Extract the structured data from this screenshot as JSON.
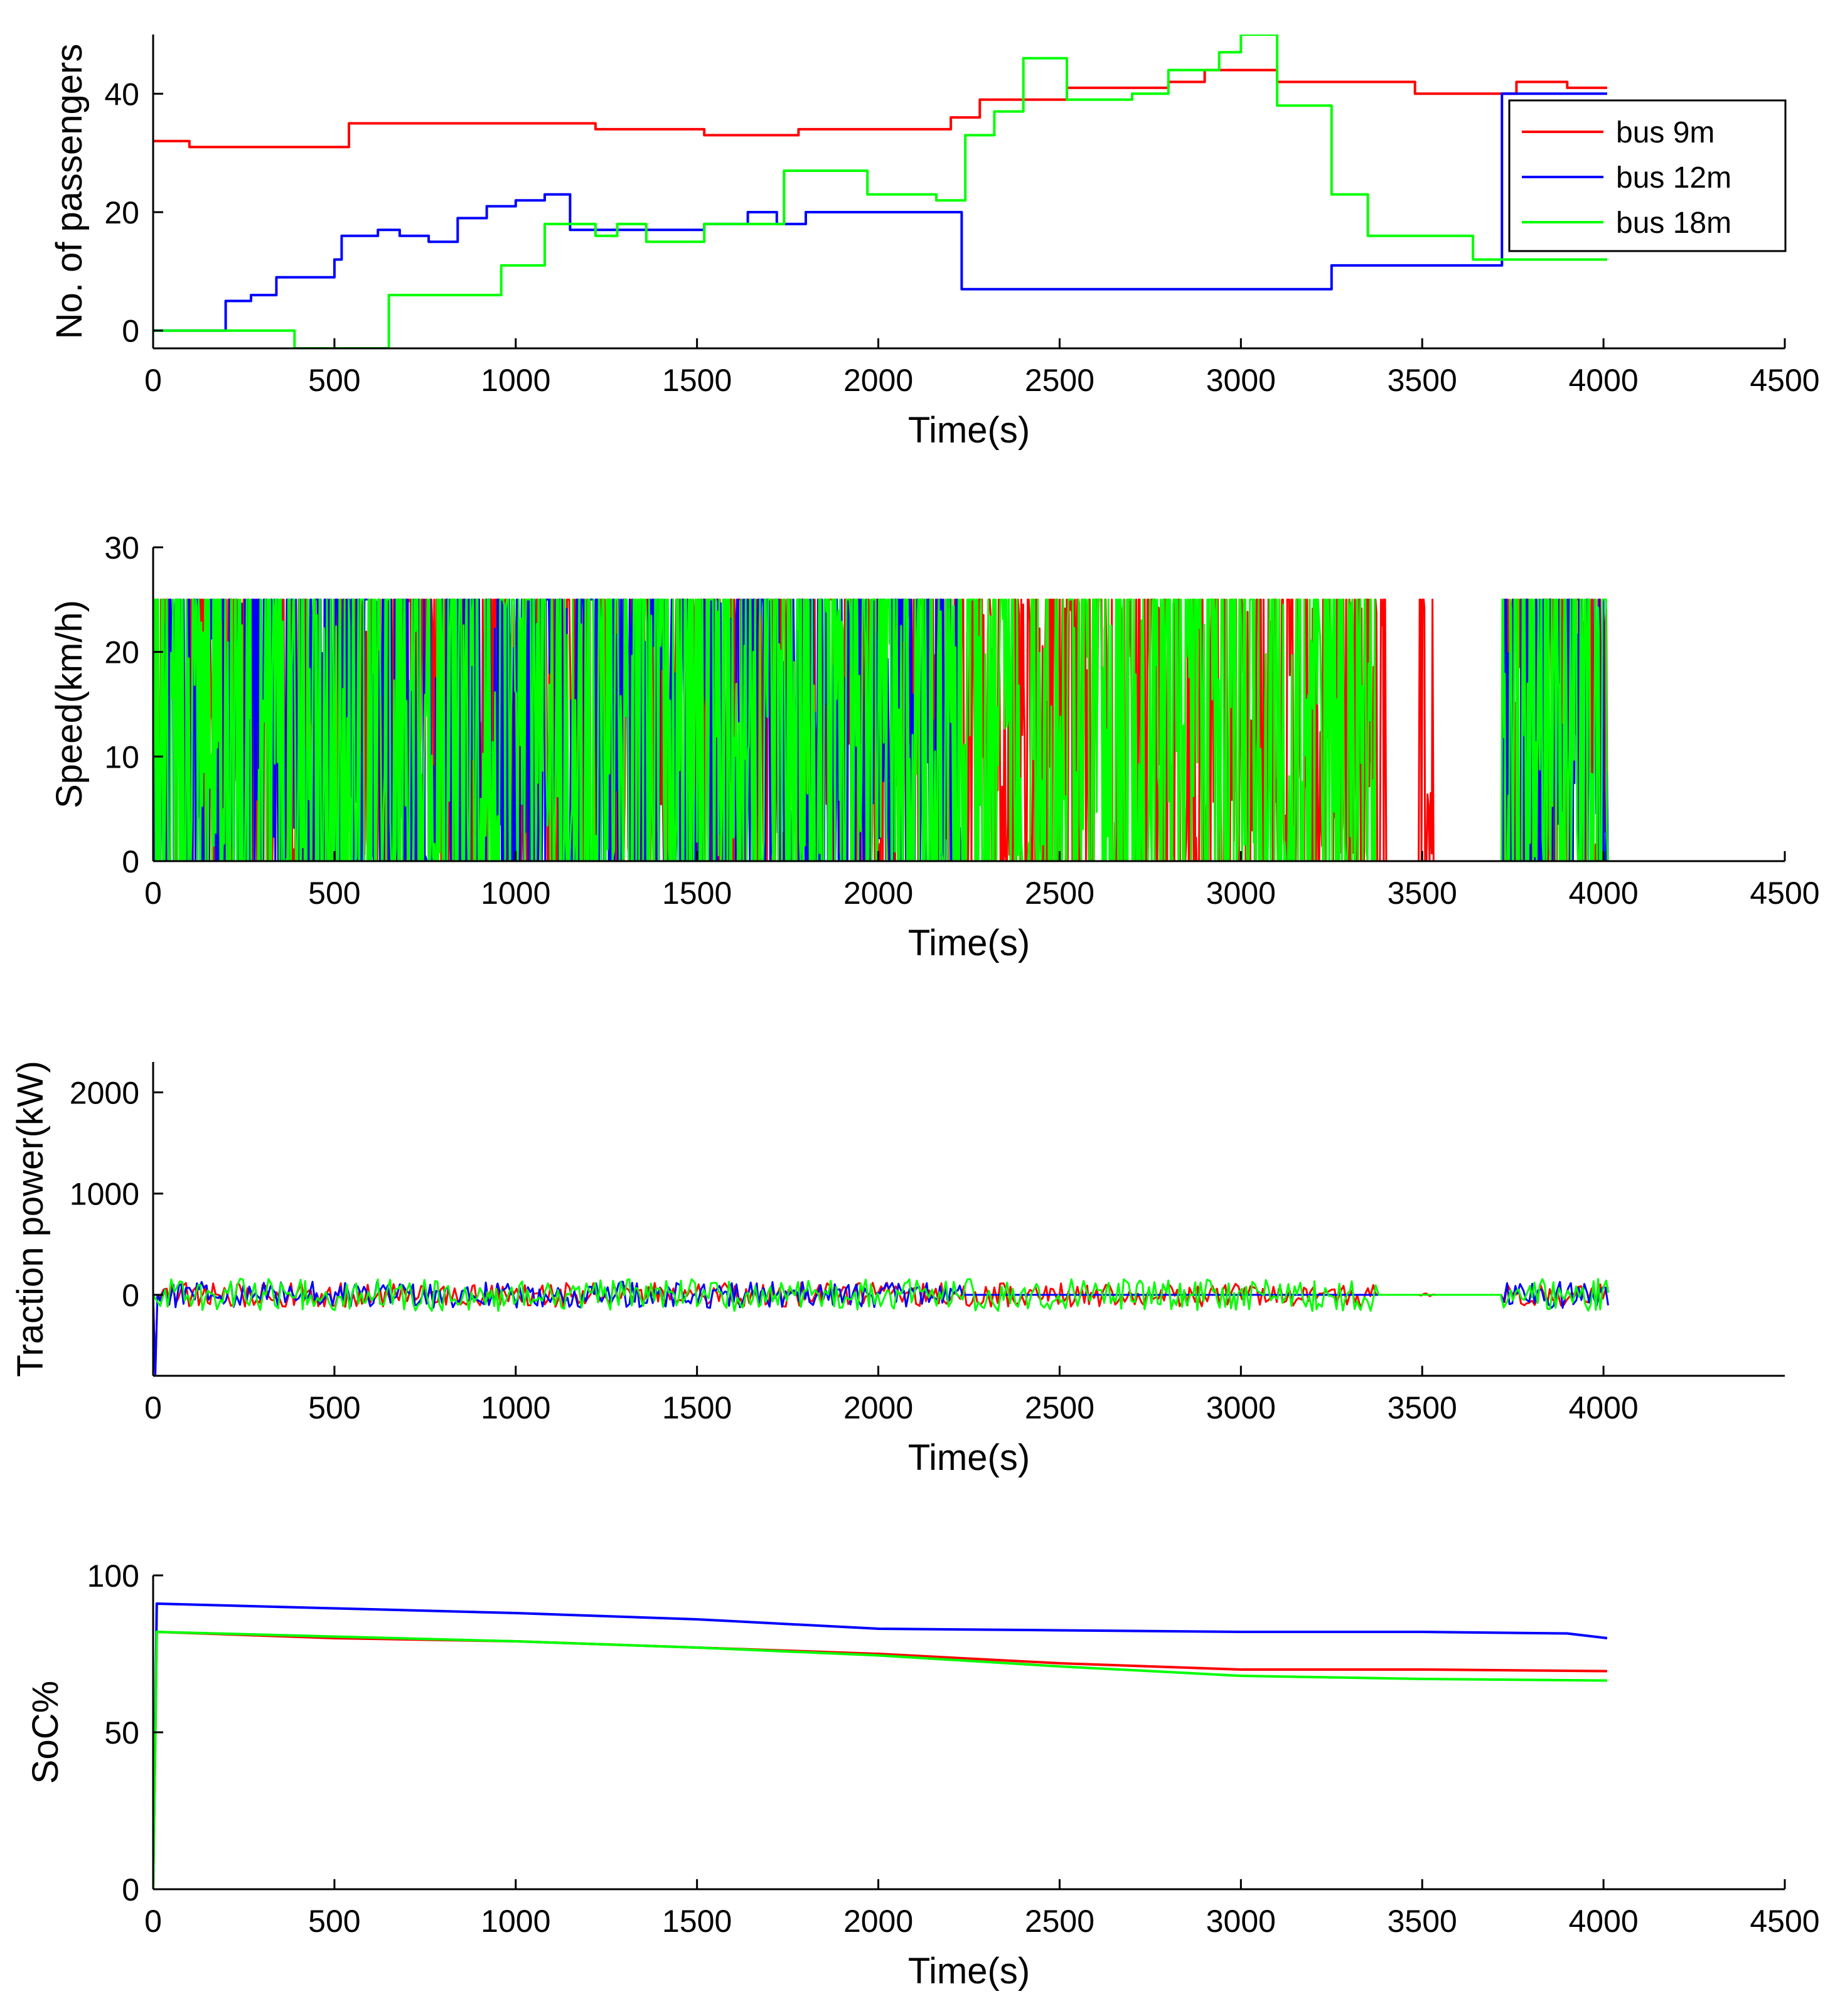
{
  "figure": {
    "colors": {
      "bus_9m": "#ff0000",
      "bus_12m": "#0000ff",
      "bus_18m": "#00ff00",
      "axis": "#000000"
    }
  },
  "legend": {
    "entries": [
      {
        "label": "bus 9m",
        "color": "#ff0000"
      },
      {
        "label": "bus 12m",
        "color": "#0000ff"
      },
      {
        "label": "bus 18m",
        "color": "#00ff00"
      }
    ]
  },
  "chart_data": [
    {
      "id": "passengers",
      "type": "line",
      "step": true,
      "xlabel": "Time(s)",
      "ylabel": "No. of passengers",
      "xlim": [
        0,
        4500
      ],
      "ylim": [
        -3,
        50
      ],
      "xticks": [
        0,
        500,
        1000,
        1500,
        2000,
        2500,
        3000,
        3500,
        4000,
        4500
      ],
      "yticks": [
        0,
        20,
        40
      ],
      "legend": "top-right",
      "series": [
        {
          "name": "bus 9m",
          "color": "#ff0000",
          "x": [
            0,
            100,
            540,
            1220,
            1520,
            1780,
            2200,
            2280,
            2520,
            2800,
            2900,
            3100,
            3480,
            3760,
            3900,
            4010
          ],
          "y": [
            32,
            31,
            35,
            34,
            33,
            34,
            36,
            39,
            41,
            42,
            44,
            42,
            40,
            42,
            41,
            41
          ]
        },
        {
          "name": "bus 12m",
          "color": "#0000ff",
          "x": [
            0,
            200,
            270,
            340,
            500,
            520,
            620,
            680,
            760,
            840,
            920,
            1000,
            1080,
            1150,
            1280,
            1520,
            1640,
            1720,
            1800,
            2230,
            3250,
            3720,
            4010
          ],
          "y": [
            0,
            5,
            6,
            9,
            12,
            16,
            17,
            16,
            15,
            19,
            21,
            22,
            23,
            17,
            17,
            18,
            20,
            18,
            20,
            7,
            11,
            40,
            40
          ]
        },
        {
          "name": "bus 18m",
          "color": "#00ff00",
          "x": [
            0,
            390,
            650,
            960,
            1080,
            1220,
            1280,
            1360,
            1520,
            1740,
            1970,
            2160,
            2240,
            2320,
            2400,
            2520,
            2700,
            2800,
            2940,
            3000,
            3100,
            3250,
            3350,
            3640,
            4010
          ],
          "y": [
            0,
            -3,
            6,
            11,
            18,
            16,
            18,
            15,
            18,
            27,
            23,
            22,
            33,
            37,
            46,
            39,
            40,
            44,
            47,
            50,
            38,
            23,
            16,
            12,
            12
          ]
        }
      ]
    },
    {
      "id": "speed",
      "type": "line",
      "xlabel": "Time(s)",
      "ylabel": "Speed(km/h)",
      "xlim": [
        0,
        4500
      ],
      "ylim": [
        0,
        30
      ],
      "xticks": [
        0,
        500,
        1000,
        1500,
        2000,
        2500,
        3000,
        3500,
        4000,
        4500
      ],
      "yticks": [
        0,
        10,
        20,
        30
      ],
      "series": [
        {
          "name": "bus 9m",
          "color": "#ff0000",
          "x_range": [
            0,
            4010
          ],
          "active": [
            [
              0,
              3400
            ],
            [
              3490,
              3530
            ],
            [
              3730,
              4010
            ]
          ],
          "y_range": [
            0,
            25
          ]
        },
        {
          "name": "bus 12m",
          "color": "#0000ff",
          "x_range": [
            0,
            4010
          ],
          "active": [
            [
              0,
              2230
            ],
            [
              3720,
              4010
            ]
          ],
          "y_range": [
            0,
            25
          ]
        },
        {
          "name": "bus 18m",
          "color": "#00ff00",
          "x_range": [
            0,
            4010
          ],
          "active": [
            [
              0,
              3370
            ],
            [
              3720,
              4010
            ]
          ],
          "y_range": [
            0,
            25
          ]
        }
      ]
    },
    {
      "id": "traction",
      "type": "line",
      "xlabel": "Time(s)",
      "ylabel": "Traction power(kW)",
      "xlim": [
        0,
        4500
      ],
      "ylim": [
        -800,
        2300
      ],
      "xticks": [
        0,
        500,
        1000,
        1500,
        2000,
        2500,
        3000,
        3500,
        4000
      ],
      "yticks": [
        0,
        1000,
        2000
      ],
      "series": [
        {
          "name": "bus 9m",
          "color": "#ff0000",
          "x_range": [
            0,
            4010
          ],
          "amplitude": 120,
          "initial_dip": -800
        },
        {
          "name": "bus 12m",
          "color": "#0000ff",
          "x_range": [
            0,
            4010
          ],
          "amplitude": 130,
          "initial_dip": -800
        },
        {
          "name": "bus 18m",
          "color": "#00ff00",
          "x_range": [
            0,
            4010
          ],
          "amplitude": 160,
          "initial_dip": 0
        }
      ]
    },
    {
      "id": "soc",
      "type": "line",
      "xlabel": "Time(s)",
      "ylabel": "SoC%",
      "xlim": [
        0,
        4500
      ],
      "ylim": [
        0,
        100
      ],
      "xticks": [
        0,
        500,
        1000,
        1500,
        2000,
        2500,
        3000,
        3500,
        4000,
        4500
      ],
      "yticks": [
        0,
        50,
        100
      ],
      "series": [
        {
          "name": "bus 9m",
          "color": "#ff0000",
          "x": [
            0,
            10,
            500,
            1000,
            1500,
            2000,
            2500,
            3000,
            3500,
            4010
          ],
          "y": [
            0,
            82,
            80,
            79,
            77,
            75,
            72,
            70,
            70,
            69.5
          ]
        },
        {
          "name": "bus 12m",
          "color": "#0000ff",
          "x": [
            0,
            10,
            500,
            1000,
            1500,
            2000,
            2500,
            3000,
            3500,
            3900,
            4010
          ],
          "y": [
            0,
            91,
            89.5,
            88,
            86,
            83,
            82.5,
            82,
            82,
            81.5,
            80
          ]
        },
        {
          "name": "bus 18m",
          "color": "#00ff00",
          "x": [
            0,
            10,
            500,
            1000,
            1500,
            2000,
            2500,
            3000,
            3500,
            4010
          ],
          "y": [
            0,
            82,
            80.5,
            79,
            77,
            74.5,
            71,
            68,
            67,
            66.5
          ]
        }
      ]
    }
  ]
}
